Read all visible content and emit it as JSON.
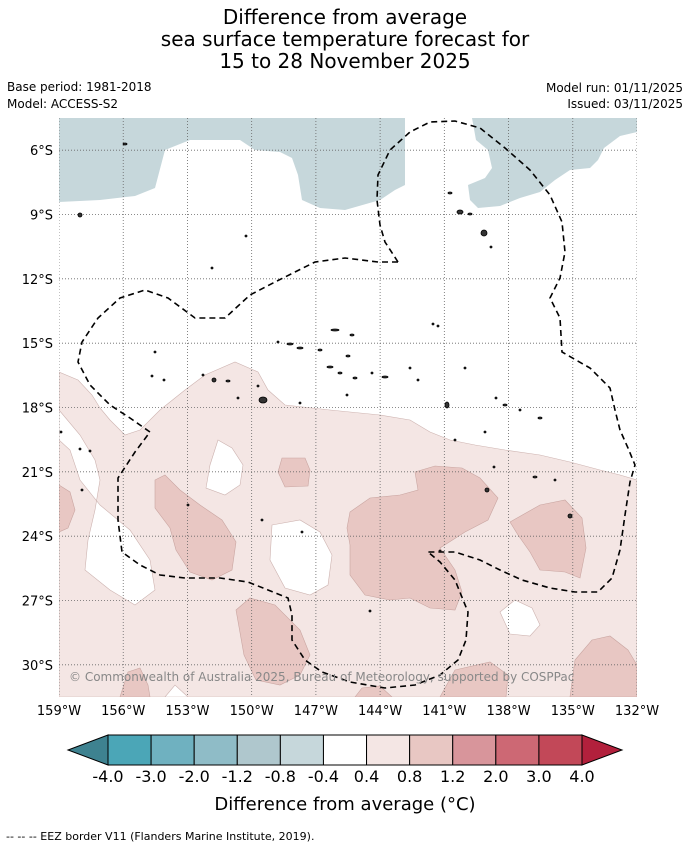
{
  "title": {
    "line1": "Difference from average",
    "line2": "sea surface temperature forecast for",
    "line3": "15 to 28 November 2025"
  },
  "meta": {
    "base_period": "Base period: 1981-2018",
    "model": "Model: ACCESS-S2",
    "model_run": "Model run: 01/11/2025",
    "issued": "Issued: 03/11/2025"
  },
  "map": {
    "extent": {
      "lon": [
        -159,
        -132
      ],
      "lat": [
        -31.5,
        -4.5
      ]
    },
    "lat_ticks": [
      {
        "value": -6,
        "label": "6°S"
      },
      {
        "value": -9,
        "label": "9°S"
      },
      {
        "value": -12,
        "label": "12°S"
      },
      {
        "value": -15,
        "label": "15°S"
      },
      {
        "value": -18,
        "label": "18°S"
      },
      {
        "value": -21,
        "label": "21°S"
      },
      {
        "value": -24,
        "label": "24°S"
      },
      {
        "value": -27,
        "label": "27°S"
      },
      {
        "value": -30,
        "label": "30°S"
      }
    ],
    "lon_ticks": [
      {
        "value": -159,
        "label": "159°W"
      },
      {
        "value": -156,
        "label": "156°W"
      },
      {
        "value": -153,
        "label": "153°W"
      },
      {
        "value": -150,
        "label": "150°W"
      },
      {
        "value": -147,
        "label": "147°W"
      },
      {
        "value": -144,
        "label": "144°W"
      },
      {
        "value": -141,
        "label": "141°W"
      },
      {
        "value": -138,
        "label": "138°W"
      },
      {
        "value": -135,
        "label": "135°W"
      },
      {
        "value": -132,
        "label": "132°W"
      }
    ],
    "gridlines": true,
    "copyright": "© Commonwealth of Australia 2025, Bureau of Meteorology, supported by COSPPac"
  },
  "colorbar": {
    "labels": [
      "-4.0",
      "-3.0",
      "-2.0",
      "-1.2",
      "-0.8",
      "-0.4",
      "0.4",
      "0.8",
      "1.2",
      "2.0",
      "3.0",
      "4.0"
    ],
    "colors": [
      "#3e8290",
      "#4ba6b7",
      "#6fb1c0",
      "#8fbcc7",
      "#afc7cd",
      "#c6d7db",
      "#ffffff",
      "#f4e6e4",
      "#e8c7c3",
      "#d8959b",
      "#cd6874",
      "#c24858",
      "#b2203c"
    ],
    "title": "Difference from average (°C)"
  },
  "footnote": "--  --  -- EEZ border V11 (Flanders Marine Institute, 2019)."
}
